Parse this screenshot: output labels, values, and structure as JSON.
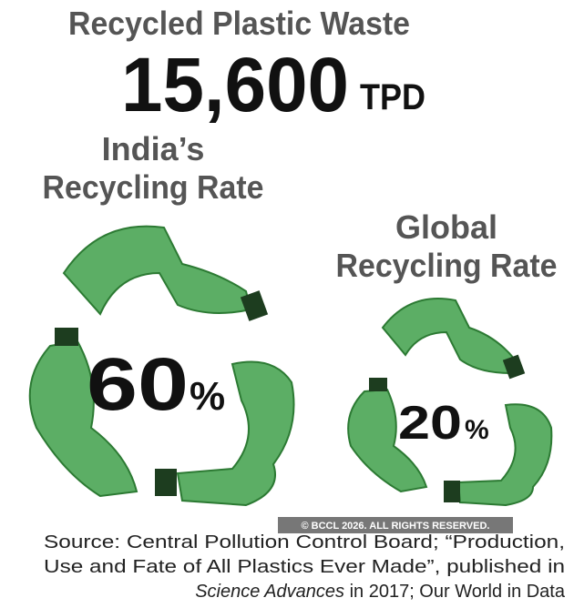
{
  "header": {
    "title": "Recycled Plastic Waste",
    "amount": "15,600",
    "unit": "TPD"
  },
  "india": {
    "label_lines": [
      "India’s",
      "Recycling Rate"
    ],
    "value": "60",
    "unit": "%"
  },
  "global": {
    "label_lines": [
      "Global",
      "Recycling Rate"
    ],
    "value": "20",
    "unit": "%"
  },
  "watermark": "© BCCL 2026. ALL RIGHTS RESERVED.",
  "source": {
    "lines": [
      "Source: Central Pollution Control Board; “Production,",
      "Use and Fate of All Plastics Ever Made”, published in"
    ],
    "italic": "Science Advances",
    "rest": " in 2017; Our World in Data"
  }
}
